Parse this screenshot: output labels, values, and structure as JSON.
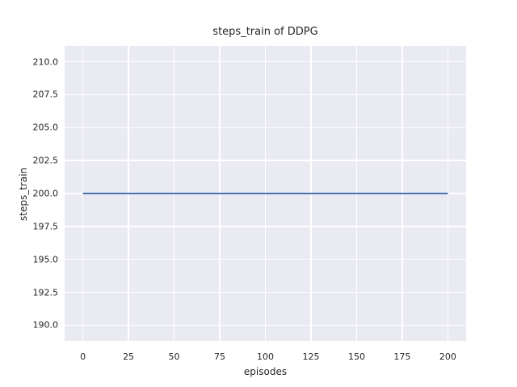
{
  "chart_data": {
    "type": "line",
    "title": "steps_train of DDPG",
    "xlabel": "episodes",
    "ylabel": "steps_train",
    "xlim": [
      -10,
      210
    ],
    "ylim": [
      188.8,
      211.2
    ],
    "grid": true,
    "legend": false,
    "xticks": {
      "values": [
        0,
        25,
        50,
        75,
        100,
        125,
        150,
        175,
        200
      ],
      "labels": [
        "0",
        "25",
        "50",
        "75",
        "100",
        "125",
        "150",
        "175",
        "200"
      ]
    },
    "yticks": {
      "values": [
        210.0,
        207.5,
        205.0,
        202.5,
        200.0,
        197.5,
        195.0,
        192.5,
        190.0
      ],
      "labels": [
        "210.0",
        "207.5",
        "205.0",
        "202.5",
        "200.0",
        "197.5",
        "195.0",
        "192.5",
        "190.0"
      ]
    },
    "series": [
      {
        "name": "steps_train",
        "x": [
          0,
          200
        ],
        "y": [
          200,
          200
        ],
        "color": "#4c72b0",
        "line_width": 2
      }
    ],
    "colors": {
      "figure_background": "#ffffff",
      "plot_background": "#eaeaf2",
      "grid": "#ffffff",
      "text": "#262626"
    }
  }
}
